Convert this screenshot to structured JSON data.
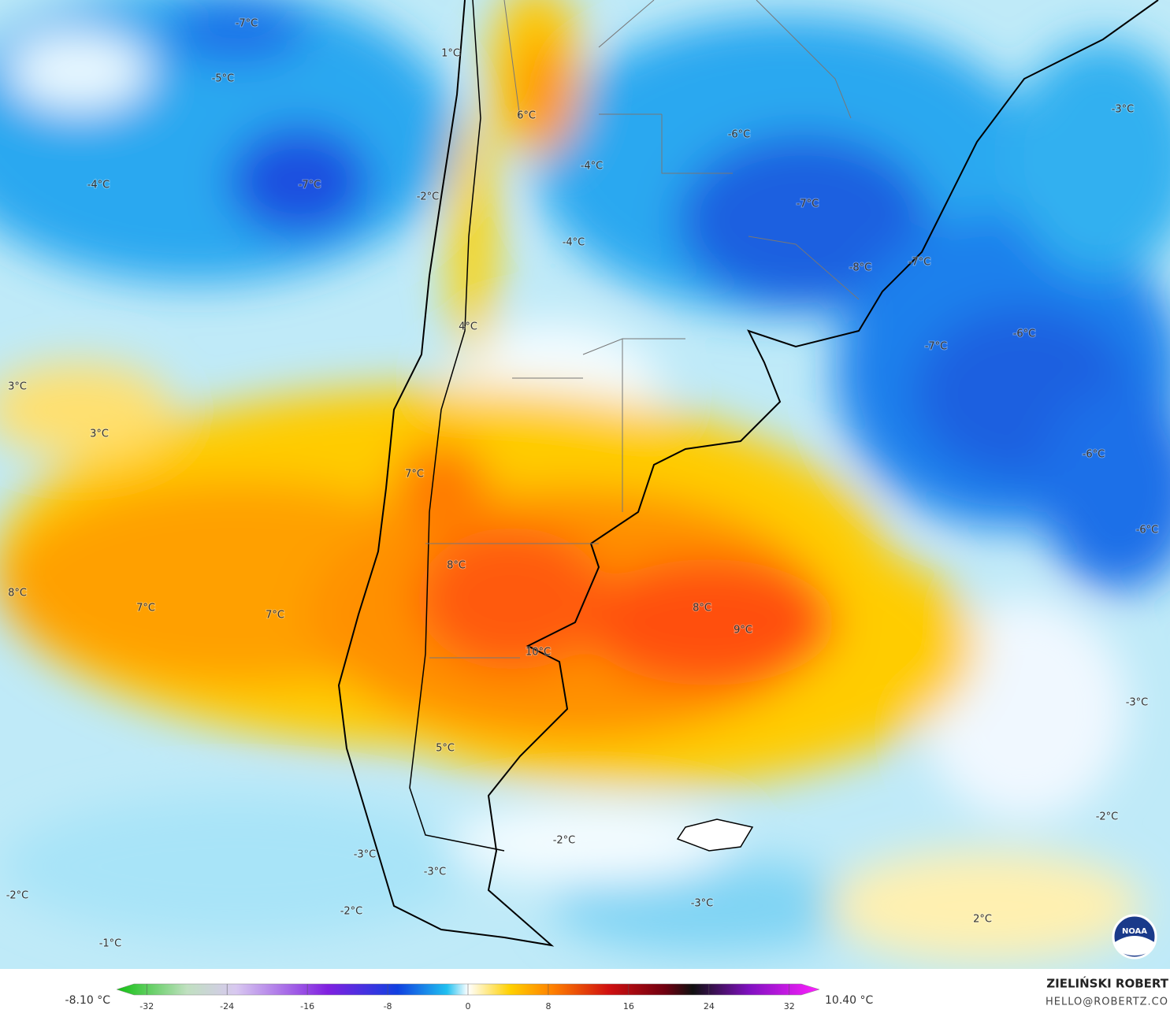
{
  "map": {
    "labels": [
      "-7°C",
      "1°C",
      "-5°C",
      "6°C",
      "-6°C",
      "-3°C",
      "-4°C",
      "-7°C",
      "-4°C",
      "-2°C",
      "-7°C",
      "-4°C",
      "-7°C",
      "-8°C",
      "-6°C",
      "-7°C",
      "4°C",
      "3°C",
      "3°C",
      "-6°C",
      "7°C",
      "-6°C",
      "8°C",
      "8°C",
      "7°C",
      "7°C",
      "8°C",
      "9°C",
      "10°C",
      "-3°C",
      "5°C",
      "-2°C",
      "-2°C",
      "-3°C",
      "-3°C",
      "-2°C",
      "-2°C",
      "-3°C",
      "2°C",
      "-1°C"
    ]
  },
  "colorbar": {
    "min_label": "-8.10 °C",
    "max_label": "10.40 °C",
    "lim": [
      -35,
      35
    ],
    "ticks": [
      -32,
      -24,
      -16,
      -8,
      0,
      8,
      16,
      24,
      32
    ]
  },
  "footer": {
    "author": "ZIELIŃSKI ROBERT",
    "email": "HELLO@ROBERTZ.CO",
    "logo": "NOAA"
  }
}
